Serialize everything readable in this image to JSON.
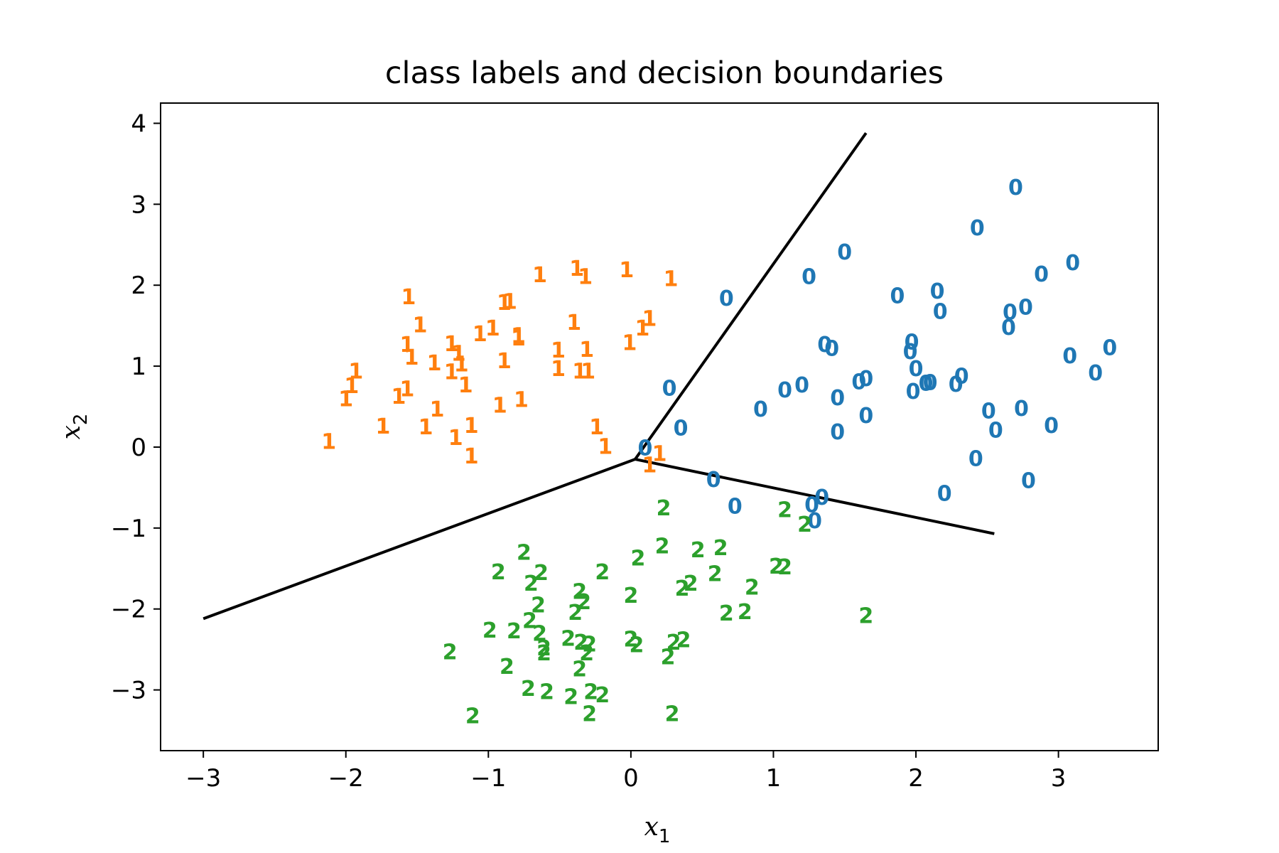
{
  "chart_data": {
    "type": "scatter",
    "title": "class labels and decision boundaries",
    "xlabel": {
      "main": "x",
      "sub": "1"
    },
    "ylabel": {
      "main": "x",
      "sub": "2"
    },
    "xlim": [
      -3.3,
      3.7
    ],
    "ylim": [
      -3.75,
      4.25
    ],
    "xticks": [
      -3,
      -2,
      -1,
      0,
      1,
      2,
      3
    ],
    "yticks": [
      -3,
      -2,
      -1,
      0,
      1,
      2,
      3,
      4
    ],
    "xtick_labels": [
      "−3",
      "−2",
      "−1",
      "0",
      "1",
      "2",
      "3"
    ],
    "ytick_labels": [
      "−3",
      "−2",
      "−1",
      "0",
      "1",
      "2",
      "3",
      "4"
    ],
    "grid": false,
    "marker_type": "class-label-text",
    "colors": {
      "0": "#1f77b4",
      "1": "#ff7f0e",
      "2": "#2ca02c",
      "boundary": "#000000",
      "frame": "#000000"
    },
    "series": [
      {
        "label": "0",
        "points": [
          [
            2.7,
            3.2
          ],
          [
            2.43,
            2.7
          ],
          [
            1.5,
            2.4
          ],
          [
            1.25,
            2.1
          ],
          [
            0.67,
            1.83
          ],
          [
            1.87,
            1.86
          ],
          [
            2.15,
            1.92
          ],
          [
            2.17,
            1.67
          ],
          [
            2.88,
            2.13
          ],
          [
            3.1,
            2.27
          ],
          [
            2.66,
            1.66
          ],
          [
            2.77,
            1.72
          ],
          [
            2.65,
            1.47
          ],
          [
            1.36,
            1.26
          ],
          [
            1.41,
            1.21
          ],
          [
            1.97,
            1.29
          ],
          [
            1.96,
            1.17
          ],
          [
            2.0,
            0.96
          ],
          [
            1.6,
            0.8
          ],
          [
            1.65,
            0.84
          ],
          [
            2.07,
            0.78
          ],
          [
            2.1,
            0.79
          ],
          [
            2.28,
            0.77
          ],
          [
            2.32,
            0.87
          ],
          [
            3.08,
            1.12
          ],
          [
            3.36,
            1.22
          ],
          [
            3.26,
            0.91
          ],
          [
            1.98,
            0.68
          ],
          [
            1.45,
            0.6
          ],
          [
            1.08,
            0.7
          ],
          [
            1.2,
            0.76
          ],
          [
            0.27,
            0.72
          ],
          [
            0.91,
            0.46
          ],
          [
            1.65,
            0.38
          ],
          [
            1.45,
            0.18
          ],
          [
            2.51,
            0.44
          ],
          [
            2.74,
            0.47
          ],
          [
            2.56,
            0.2
          ],
          [
            2.95,
            0.26
          ],
          [
            0.35,
            0.23
          ],
          [
            0.1,
            -0.02
          ],
          [
            2.42,
            -0.15
          ],
          [
            0.58,
            -0.41
          ],
          [
            2.79,
            -0.42
          ],
          [
            0.73,
            -0.74
          ],
          [
            1.27,
            -0.72
          ],
          [
            1.34,
            -0.63
          ],
          [
            2.2,
            -0.58
          ],
          [
            1.29,
            -0.92
          ]
        ]
      },
      {
        "label": "1",
        "points": [
          [
            -0.38,
            2.2
          ],
          [
            -0.03,
            2.18
          ],
          [
            -0.64,
            2.12
          ],
          [
            -0.32,
            2.1
          ],
          [
            0.28,
            2.07
          ],
          [
            -1.56,
            1.85
          ],
          [
            -0.89,
            1.78
          ],
          [
            -0.85,
            1.79
          ],
          [
            -0.4,
            1.53
          ],
          [
            0.13,
            1.58
          ],
          [
            0.08,
            1.46
          ],
          [
            -1.48,
            1.5
          ],
          [
            -1.57,
            1.26
          ],
          [
            -0.97,
            1.46
          ],
          [
            -1.06,
            1.39
          ],
          [
            -0.79,
            1.34
          ],
          [
            -0.79,
            1.37
          ],
          [
            -1.26,
            1.27
          ],
          [
            -1.21,
            1.15
          ],
          [
            -1.54,
            1.1
          ],
          [
            -0.51,
            1.19
          ],
          [
            -0.31,
            1.2
          ],
          [
            -0.01,
            1.28
          ],
          [
            -1.38,
            1.03
          ],
          [
            -1.19,
            1.02
          ],
          [
            -0.89,
            1.06
          ],
          [
            -0.51,
            0.96
          ],
          [
            -0.36,
            0.93
          ],
          [
            -0.3,
            0.93
          ],
          [
            -1.26,
            0.92
          ],
          [
            -1.93,
            0.93
          ],
          [
            -1.16,
            0.76
          ],
          [
            -1.57,
            0.71
          ],
          [
            -1.96,
            0.75
          ],
          [
            -1.63,
            0.62
          ],
          [
            -2.0,
            0.59
          ],
          [
            -0.77,
            0.58
          ],
          [
            -0.92,
            0.51
          ],
          [
            -1.36,
            0.46
          ],
          [
            -1.74,
            0.25
          ],
          [
            -1.44,
            0.24
          ],
          [
            -1.12,
            0.26
          ],
          [
            -0.24,
            0.24
          ],
          [
            -1.23,
            0.11
          ],
          [
            -2.12,
            0.06
          ],
          [
            -0.18,
            0.0
          ],
          [
            -1.12,
            -0.12
          ],
          [
            0.2,
            -0.09
          ],
          [
            0.13,
            -0.23
          ]
        ]
      },
      {
        "label": "2",
        "points": [
          [
            0.23,
            -0.76
          ],
          [
            1.08,
            -0.78
          ],
          [
            1.22,
            -0.96
          ],
          [
            0.22,
            -1.23
          ],
          [
            -0.75,
            -1.31
          ],
          [
            0.47,
            -1.28
          ],
          [
            0.63,
            -1.25
          ],
          [
            0.05,
            -1.38
          ],
          [
            -0.93,
            -1.55
          ],
          [
            -0.63,
            -1.56
          ],
          [
            -0.7,
            -1.69
          ],
          [
            -0.2,
            -1.55
          ],
          [
            0.59,
            -1.57
          ],
          [
            1.02,
            -1.48
          ],
          [
            1.08,
            -1.49
          ],
          [
            0.42,
            -1.69
          ],
          [
            0.36,
            -1.75
          ],
          [
            0.85,
            -1.74
          ],
          [
            -0.36,
            -1.79
          ],
          [
            -0.33,
            -1.92
          ],
          [
            0.0,
            -1.84
          ],
          [
            -0.65,
            -1.96
          ],
          [
            -0.39,
            -2.05
          ],
          [
            0.67,
            -2.06
          ],
          [
            0.8,
            -2.04
          ],
          [
            1.65,
            -2.09
          ],
          [
            -0.71,
            -2.15
          ],
          [
            -0.99,
            -2.27
          ],
          [
            -0.82,
            -2.28
          ],
          [
            -0.64,
            -2.31
          ],
          [
            -0.44,
            -2.37
          ],
          [
            0.0,
            -2.38
          ],
          [
            -0.61,
            -2.49
          ],
          [
            -0.35,
            -2.42
          ],
          [
            -0.29,
            -2.44
          ],
          [
            0.04,
            -2.45
          ],
          [
            0.3,
            -2.42
          ],
          [
            0.37,
            -2.39
          ],
          [
            -1.27,
            -2.54
          ],
          [
            -0.61,
            -2.55
          ],
          [
            -0.31,
            -2.55
          ],
          [
            0.26,
            -2.6
          ],
          [
            -0.87,
            -2.72
          ],
          [
            -0.36,
            -2.75
          ],
          [
            -0.72,
            -2.99
          ],
          [
            -0.59,
            -3.03
          ],
          [
            -0.42,
            -3.09
          ],
          [
            -0.28,
            -3.03
          ],
          [
            -0.2,
            -3.07
          ],
          [
            0.29,
            -3.3
          ],
          [
            -0.29,
            -3.3
          ],
          [
            -1.11,
            -3.33
          ]
        ]
      }
    ],
    "boundaries": [
      {
        "from": [
          0.03,
          -0.15
        ],
        "to": [
          1.65,
          3.88
        ]
      },
      {
        "from": [
          0.03,
          -0.15
        ],
        "to": [
          -3.0,
          -2.12
        ]
      },
      {
        "from": [
          0.03,
          -0.15
        ],
        "to": [
          2.55,
          -1.07
        ]
      }
    ]
  }
}
